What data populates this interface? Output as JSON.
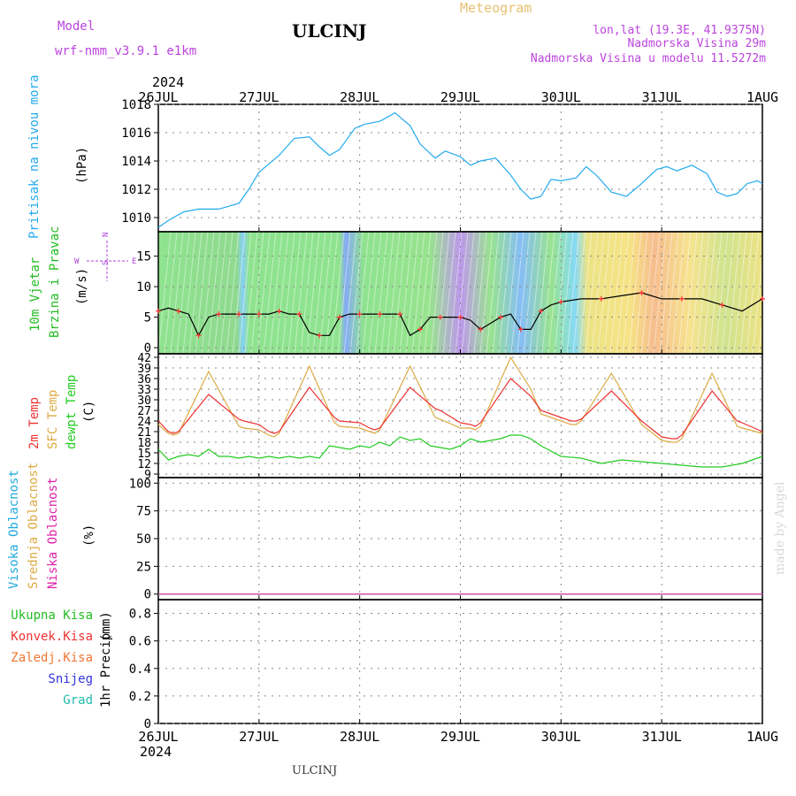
{
  "header": {
    "title": "ULCINJ",
    "subtitle": "Meteogram",
    "model_label": "Model",
    "model_name": "wrf-nmm_v3.9.1 e1km",
    "coords": "lon,lat (19.3E, 41.9375N)",
    "elevation": "Nadmorska Visina 29m",
    "model_elevation": "Nadmorska Visina u modelu 11.5272m",
    "footer_title": "ULCINJ",
    "credit": "made by Angel"
  },
  "time_axis": {
    "year": "2024",
    "ticks": [
      "26JUL",
      "27JUL",
      "28JUL",
      "29JUL",
      "30JUL",
      "31JUL",
      "1AUG"
    ]
  },
  "colors": {
    "pressure": "#22aaee",
    "temp2m": "#ee3333",
    "sfc_temp": "#ddaa44",
    "dewpt": "#22cc22",
    "cloud_high": "#22aadd",
    "cloud_mid": "#ddaa44",
    "cloud_low": "#dd22aa",
    "wind_speed_line": "#000000",
    "wind_marker": "#ff3333"
  },
  "chart_data": [
    {
      "type": "line",
      "panel": "pressure",
      "ylabel": "Pritisak na nivou mora",
      "unit": "(hPa)",
      "ylim": [
        1009,
        1018
      ],
      "yticks": [
        1010,
        1012,
        1014,
        1016,
        1018
      ],
      "grid": true,
      "series": [
        {
          "name": "Pritisak na nivou mora",
          "x": [
            0,
            0.1,
            0.25,
            0.4,
            0.6,
            0.8,
            0.9,
            1.0,
            1.1,
            1.2,
            1.35,
            1.5,
            1.6,
            1.7,
            1.8,
            1.95,
            2.05,
            2.2,
            2.35,
            2.5,
            2.6,
            2.75,
            2.85,
            3.0,
            3.1,
            3.2,
            3.35,
            3.5,
            3.6,
            3.7,
            3.8,
            3.9,
            4.0,
            4.15,
            4.25,
            4.35,
            4.5,
            4.65,
            4.8,
            4.95,
            5.05,
            5.15,
            5.3,
            5.45,
            5.55,
            5.65,
            5.75,
            5.85,
            5.95,
            6.0
          ],
          "values": [
            1009.3,
            1009.8,
            1010.4,
            1010.6,
            1010.6,
            1011.0,
            1012.0,
            1013.2,
            1013.8,
            1014.4,
            1015.6,
            1015.7,
            1015.0,
            1014.4,
            1014.8,
            1016.3,
            1016.6,
            1016.8,
            1017.4,
            1016.5,
            1015.2,
            1014.2,
            1014.7,
            1014.3,
            1013.7,
            1014.0,
            1014.2,
            1013.0,
            1012.0,
            1011.3,
            1011.5,
            1012.7,
            1012.6,
            1012.8,
            1013.6,
            1013.0,
            1011.8,
            1011.5,
            1012.4,
            1013.4,
            1013.6,
            1013.3,
            1013.7,
            1013.1,
            1011.8,
            1011.5,
            1011.7,
            1012.4,
            1012.6,
            1012.4
          ]
        }
      ]
    },
    {
      "type": "line",
      "panel": "wind",
      "ylabel": "10m Vjetar Brzina i Pravac",
      "unit": "(m/s)",
      "ylim": [
        -1,
        19
      ],
      "yticks": [
        0,
        5,
        10,
        15
      ],
      "grid": true,
      "legend_compass": {
        "n": "N",
        "s": "S",
        "e": "E",
        "w": "W"
      },
      "series": [
        {
          "name": "10m Vjetar Brzina",
          "x": [
            0,
            0.1,
            0.2,
            0.3,
            0.4,
            0.5,
            0.6,
            0.7,
            0.8,
            0.9,
            1.0,
            1.1,
            1.2,
            1.3,
            1.4,
            1.5,
            1.6,
            1.7,
            1.8,
            1.9,
            2.0,
            2.1,
            2.2,
            2.3,
            2.4,
            2.5,
            2.6,
            2.7,
            2.8,
            2.9,
            3.0,
            3.1,
            3.2,
            3.3,
            3.4,
            3.5,
            3.6,
            3.7,
            3.8,
            3.9,
            4.0,
            4.2,
            4.4,
            4.6,
            4.8,
            5.0,
            5.2,
            5.4,
            5.6,
            5.8,
            6.0
          ],
          "values": [
            6,
            6.5,
            6,
            5.5,
            2,
            5,
            5.5,
            5.5,
            5.5,
            5.5,
            5.5,
            5.5,
            6,
            5.5,
            5.5,
            2.5,
            2,
            2,
            5,
            5.5,
            5.5,
            5.5,
            5.5,
            5.5,
            5.5,
            2,
            3,
            5,
            5,
            5,
            5,
            4.5,
            3,
            4,
            5,
            5.5,
            3,
            3,
            6,
            7,
            7.5,
            8,
            8,
            8.5,
            9,
            8,
            8,
            8,
            7,
            6,
            8
          ]
        }
      ]
    },
    {
      "type": "line",
      "panel": "temperature",
      "ylabel": "2m Temp / SFC Temp / dewpt Temp",
      "unit": "(C)",
      "ylim": [
        8,
        43
      ],
      "yticks": [
        9,
        12,
        15,
        18,
        21,
        24,
        27,
        30,
        33,
        36,
        39,
        42
      ],
      "grid": true,
      "series": [
        {
          "name": "2m Temp",
          "x": [
            0,
            0.1,
            0.15,
            0.2,
            0.5,
            0.8,
            0.85,
            1.0,
            1.1,
            1.15,
            1.2,
            1.5,
            1.75,
            1.8,
            2.0,
            2.1,
            2.15,
            2.2,
            2.5,
            2.75,
            2.8,
            3.0,
            3.1,
            3.15,
            3.2,
            3.5,
            3.7,
            3.8,
            4.0,
            4.1,
            4.15,
            4.2,
            4.5,
            4.8,
            5.0,
            5.1,
            5.15,
            5.2,
            5.5,
            5.75,
            5.8,
            6.0
          ],
          "values": [
            24,
            21,
            20.5,
            21,
            31.5,
            24.5,
            24,
            23,
            21,
            20.5,
            21,
            33.5,
            25,
            24,
            23.5,
            22,
            21.5,
            22,
            33.5,
            27.5,
            27,
            23.5,
            23,
            22.5,
            23.5,
            36,
            31,
            27,
            25,
            24,
            24,
            24.5,
            32.5,
            24,
            19.5,
            19,
            19,
            20,
            32.5,
            24,
            23.5,
            21
          ]
        },
        {
          "name": "SFC Temp",
          "x": [
            0,
            0.1,
            0.15,
            0.2,
            0.5,
            0.8,
            0.85,
            1.0,
            1.1,
            1.15,
            1.2,
            1.5,
            1.75,
            1.8,
            2.0,
            2.1,
            2.15,
            2.2,
            2.5,
            2.75,
            2.8,
            3.0,
            3.1,
            3.15,
            3.2,
            3.5,
            3.7,
            3.8,
            4.0,
            4.1,
            4.15,
            4.2,
            4.5,
            4.8,
            5.0,
            5.1,
            5.15,
            5.2,
            5.5,
            5.75,
            5.8,
            6.0
          ],
          "values": [
            23,
            20.5,
            20,
            20.5,
            38,
            22.5,
            22,
            21.5,
            20,
            19.5,
            20.5,
            39.5,
            23.5,
            22.5,
            22,
            21,
            20.5,
            21.5,
            39.5,
            25,
            24.5,
            22,
            22,
            21.5,
            22.5,
            42,
            33,
            26,
            24,
            23,
            23,
            24,
            37.5,
            23,
            18.5,
            18,
            18,
            19,
            37.5,
            22.5,
            22,
            20.5
          ]
        },
        {
          "name": "dewpt Temp",
          "x": [
            0,
            0.1,
            0.2,
            0.3,
            0.4,
            0.5,
            0.6,
            0.7,
            0.8,
            0.9,
            1.0,
            1.1,
            1.2,
            1.3,
            1.4,
            1.5,
            1.6,
            1.7,
            1.8,
            1.9,
            2.0,
            2.1,
            2.2,
            2.3,
            2.4,
            2.5,
            2.6,
            2.7,
            2.8,
            2.9,
            3.0,
            3.1,
            3.2,
            3.3,
            3.4,
            3.5,
            3.6,
            3.7,
            3.8,
            4.0,
            4.2,
            4.4,
            4.6,
            4.8,
            5.0,
            5.2,
            5.4,
            5.6,
            5.8,
            6.0
          ],
          "values": [
            16,
            13,
            14,
            14.5,
            14,
            16,
            14,
            14,
            13.5,
            14,
            13.5,
            14,
            13.5,
            14,
            13.5,
            14,
            13.5,
            17,
            16.5,
            16,
            17,
            16.5,
            18,
            17,
            19.5,
            18.5,
            19,
            17,
            16.5,
            16,
            17,
            19,
            18,
            18.5,
            19,
            20,
            20,
            19,
            17,
            14,
            13.5,
            12,
            13,
            12.5,
            12,
            11.5,
            11,
            11,
            12,
            14
          ]
        }
      ]
    },
    {
      "type": "line",
      "panel": "cloud",
      "ylabel": "Visoka Oblacnost / Srednja Oblacnost / Niska Oblacnost",
      "unit": "(%)",
      "ylim": [
        -5,
        105
      ],
      "yticks": [
        0,
        25,
        50,
        75,
        100
      ],
      "grid": true,
      "series": [
        {
          "name": "Visoka Oblacnost",
          "x": [
            0,
            6
          ],
          "values": [
            0,
            0
          ]
        },
        {
          "name": "Srednja Oblacnost",
          "x": [
            0,
            6
          ],
          "values": [
            0,
            0
          ]
        },
        {
          "name": "Niska Oblacnost",
          "x": [
            0,
            6
          ],
          "values": [
            0,
            0
          ]
        }
      ]
    },
    {
      "type": "line",
      "panel": "precip",
      "ylabel": "1hr Precip",
      "unit": "(mm)",
      "ylim": [
        0,
        0.9
      ],
      "yticks": [
        0,
        0.2,
        0.4,
        0.6,
        0.8
      ],
      "grid": true,
      "legend": [
        "Ukupna Kisa",
        "Konvek.Kisa",
        "Zaledj.Kisa",
        "Snijeg",
        "Grad"
      ],
      "legend_colors": [
        "#22bb22",
        "#ee3333",
        "#ee7733",
        "#3333dd",
        "#22bbaa"
      ],
      "series": []
    }
  ]
}
